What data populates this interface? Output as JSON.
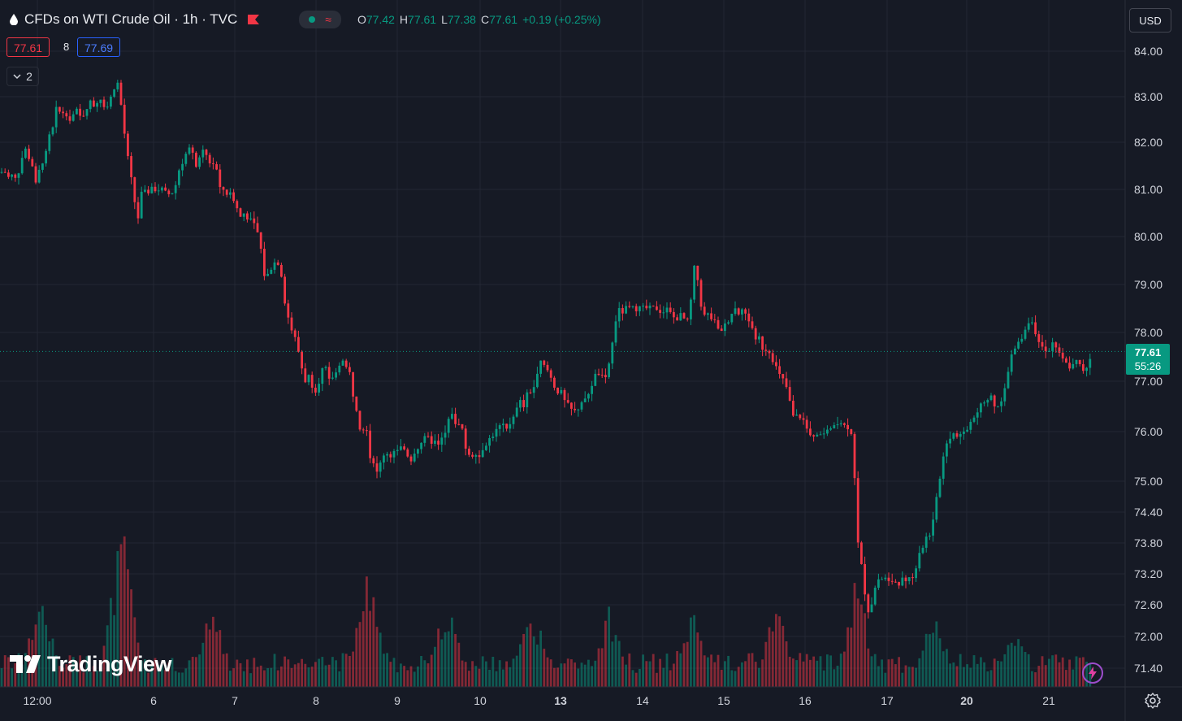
{
  "header": {
    "symbol_title": "CFDs on WTI Crude Oil · 1h · TVC",
    "ohlc": {
      "o_label": "O",
      "o_value": "77.42",
      "h_label": "H",
      "h_value": "77.61",
      "l_label": "L",
      "l_value": "77.38",
      "c_label": "C",
      "c_value": "77.61",
      "change": "+0.19 (+0.25%)"
    },
    "approx_symbol": "≈"
  },
  "trade": {
    "sell_price": "77.61",
    "spread": "8",
    "buy_price": "77.69"
  },
  "indicators_toggle": {
    "count": "2"
  },
  "currency": "USD",
  "last_price": {
    "price": "77.61",
    "countdown": "55:26"
  },
  "watermark": "TradingView",
  "colors": {
    "up": "#089981",
    "down": "#f23645",
    "background": "#161a25",
    "grid": "#232733"
  },
  "icons": [
    "drop-icon",
    "flag-icon",
    "chevron-down-icon",
    "settings-icon",
    "lightning-icon",
    "tradingview-logo-icon"
  ],
  "chart_data": {
    "type": "candlestick",
    "title": "CFDs on WTI Crude Oil · 1h · TVC",
    "interval": "1h",
    "y_axis_side": "right",
    "y_ticks": [
      "84.00",
      "83.00",
      "82.00",
      "81.00",
      "80.00",
      "79.00",
      "78.00",
      "77.00",
      "76.00",
      "75.00",
      "74.40",
      "73.80",
      "73.20",
      "72.60",
      "72.00",
      "71.40"
    ],
    "y_scale": "logarithmic",
    "x_ticks": [
      "12:00",
      "6",
      "7",
      "8",
      "9",
      "10",
      "13",
      "14",
      "15",
      "16",
      "17",
      "20",
      "21"
    ],
    "bold_x_ticks": [
      "13",
      "20"
    ],
    "last_value": 77.61,
    "grid": true,
    "price_path": [
      [
        0,
        81.35
      ],
      [
        5,
        81.4
      ],
      [
        10,
        81.25
      ],
      [
        15,
        81.3
      ],
      [
        20,
        81.2
      ],
      [
        25,
        81.5
      ],
      [
        30,
        81.9
      ],
      [
        35,
        81.7
      ],
      [
        40,
        81.5
      ],
      [
        45,
        81.0
      ],
      [
        50,
        81.6
      ],
      [
        55,
        81.6
      ],
      [
        60,
        82.1
      ],
      [
        65,
        82.3
      ],
      [
        70,
        82.8
      ],
      [
        75,
        82.6
      ],
      [
        80,
        82.7
      ],
      [
        85,
        82.5
      ],
      [
        90,
        82.6
      ],
      [
        95,
        82.7
      ],
      [
        100,
        82.5
      ],
      [
        105,
        82.7
      ],
      [
        110,
        82.9
      ],
      [
        115,
        82.8
      ],
      [
        120,
        82.9
      ],
      [
        125,
        83.0
      ],
      [
        130,
        82.7
      ],
      [
        135,
        82.9
      ],
      [
        140,
        83.2
      ],
      [
        145,
        83.3
      ],
      [
        150,
        82.7
      ],
      [
        155,
        81.9
      ],
      [
        160,
        81.4
      ],
      [
        165,
        80.8
      ],
      [
        170,
        80.4
      ],
      [
        175,
        81.0
      ],
      [
        180,
        80.9
      ],
      [
        185,
        81.0
      ],
      [
        190,
        81.0
      ],
      [
        195,
        81.0
      ],
      [
        200,
        81.0
      ],
      [
        205,
        80.9
      ],
      [
        210,
        80.9
      ],
      [
        215,
        81.0
      ],
      [
        220,
        81.4
      ],
      [
        225,
        81.6
      ],
      [
        230,
        81.8
      ],
      [
        235,
        81.9
      ],
      [
        240,
        81.5
      ],
      [
        245,
        81.6
      ],
      [
        250,
        81.8
      ],
      [
        255,
        81.7
      ],
      [
        260,
        81.5
      ],
      [
        265,
        81.6
      ],
      [
        270,
        81.0
      ],
      [
        275,
        81.0
      ],
      [
        280,
        80.9
      ],
      [
        285,
        80.9
      ],
      [
        290,
        80.7
      ],
      [
        295,
        80.4
      ],
      [
        300,
        80.5
      ],
      [
        305,
        80.4
      ],
      [
        310,
        80.3
      ],
      [
        315,
        80.2
      ],
      [
        320,
        79.9
      ],
      [
        325,
        79.2
      ],
      [
        330,
        79.2
      ],
      [
        335,
        79.4
      ],
      [
        340,
        79.5
      ],
      [
        345,
        79.4
      ],
      [
        350,
        78.7
      ],
      [
        355,
        78.3
      ],
      [
        360,
        78.0
      ],
      [
        365,
        77.8
      ],
      [
        370,
        77.4
      ],
      [
        375,
        77.0
      ],
      [
        380,
        77.1
      ],
      [
        385,
        76.9
      ],
      [
        390,
        76.8
      ],
      [
        395,
        77.2
      ],
      [
        400,
        77.3
      ],
      [
        405,
        77.0
      ],
      [
        410,
        77.1
      ],
      [
        415,
        77.2
      ],
      [
        420,
        77.5
      ],
      [
        425,
        77.3
      ],
      [
        430,
        77.2
      ],
      [
        435,
        76.7
      ],
      [
        440,
        76.4
      ],
      [
        445,
        75.9
      ],
      [
        450,
        76.3
      ],
      [
        455,
        75.5
      ],
      [
        460,
        75.4
      ],
      [
        465,
        75.1
      ],
      [
        470,
        75.5
      ],
      [
        475,
        75.6
      ],
      [
        480,
        75.5
      ],
      [
        485,
        75.6
      ],
      [
        490,
        75.6
      ],
      [
        495,
        75.7
      ],
      [
        500,
        75.6
      ],
      [
        505,
        75.4
      ],
      [
        510,
        75.6
      ],
      [
        515,
        75.7
      ],
      [
        520,
        75.8
      ],
      [
        525,
        75.9
      ],
      [
        530,
        75.8
      ],
      [
        535,
        75.8
      ],
      [
        540,
        75.7
      ],
      [
        545,
        75.9
      ],
      [
        550,
        76.0
      ],
      [
        555,
        76.5
      ],
      [
        560,
        76.1
      ],
      [
        565,
        76.2
      ],
      [
        570,
        76.0
      ],
      [
        575,
        75.5
      ],
      [
        580,
        75.5
      ],
      [
        585,
        75.6
      ],
      [
        590,
        75.5
      ],
      [
        595,
        75.7
      ],
      [
        600,
        75.8
      ],
      [
        605,
        75.9
      ],
      [
        610,
        76.0
      ],
      [
        615,
        76.1
      ],
      [
        620,
        76.1
      ],
      [
        625,
        76.0
      ],
      [
        630,
        76.3
      ],
      [
        635,
        76.4
      ],
      [
        640,
        76.6
      ],
      [
        645,
        76.5
      ],
      [
        650,
        76.8
      ],
      [
        655,
        76.8
      ],
      [
        660,
        77.0
      ],
      [
        665,
        77.4
      ],
      [
        670,
        77.3
      ],
      [
        675,
        77.2
      ],
      [
        680,
        77.0
      ],
      [
        685,
        76.8
      ],
      [
        690,
        76.8
      ],
      [
        695,
        76.6
      ],
      [
        700,
        76.5
      ],
      [
        705,
        76.4
      ],
      [
        710,
        76.4
      ],
      [
        715,
        76.6
      ],
      [
        720,
        76.6
      ],
      [
        725,
        76.8
      ],
      [
        730,
        77.0
      ],
      [
        735,
        77.2
      ],
      [
        740,
        77.1
      ],
      [
        745,
        77.0
      ],
      [
        750,
        77.4
      ],
      [
        755,
        77.9
      ],
      [
        760,
        78.5
      ],
      [
        765,
        78.4
      ],
      [
        770,
        78.5
      ],
      [
        775,
        78.5
      ],
      [
        780,
        78.5
      ],
      [
        785,
        78.5
      ],
      [
        790,
        78.5
      ],
      [
        795,
        78.5
      ],
      [
        800,
        78.5
      ],
      [
        805,
        78.5
      ],
      [
        810,
        78.5
      ],
      [
        815,
        78.4
      ],
      [
        820,
        78.5
      ],
      [
        825,
        78.4
      ],
      [
        830,
        78.3
      ],
      [
        835,
        78.3
      ],
      [
        840,
        78.4
      ],
      [
        845,
        78.1
      ],
      [
        850,
        78.6
      ],
      [
        855,
        79.4
      ],
      [
        860,
        79.0
      ],
      [
        865,
        78.3
      ],
      [
        870,
        78.4
      ],
      [
        875,
        78.3
      ],
      [
        880,
        78.2
      ],
      [
        885,
        78.0
      ],
      [
        890,
        78.1
      ],
      [
        895,
        78.2
      ],
      [
        900,
        78.4
      ],
      [
        905,
        78.5
      ],
      [
        910,
        78.4
      ],
      [
        915,
        78.6
      ],
      [
        920,
        78.2
      ],
      [
        925,
        78.2
      ],
      [
        930,
        77.8
      ],
      [
        935,
        77.9
      ],
      [
        940,
        77.6
      ],
      [
        945,
        77.7
      ],
      [
        950,
        77.5
      ],
      [
        955,
        77.3
      ],
      [
        960,
        77.1
      ],
      [
        965,
        77.0
      ],
      [
        970,
        76.8
      ],
      [
        975,
        76.3
      ],
      [
        980,
        76.3
      ],
      [
        985,
        76.3
      ],
      [
        990,
        76.2
      ],
      [
        995,
        75.9
      ],
      [
        1000,
        75.9
      ],
      [
        1005,
        76.0
      ],
      [
        1010,
        75.9
      ],
      [
        1015,
        76.0
      ],
      [
        1020,
        76.1
      ],
      [
        1025,
        76.1
      ],
      [
        1030,
        76.2
      ],
      [
        1035,
        76.2
      ],
      [
        1040,
        76.1
      ],
      [
        1045,
        76.1
      ],
      [
        1050,
        75.9
      ],
      [
        1055,
        73.9
      ],
      [
        1060,
        73.4
      ],
      [
        1065,
        72.8
      ],
      [
        1070,
        72.4
      ],
      [
        1075,
        72.8
      ],
      [
        1080,
        73.1
      ],
      [
        1085,
        73.1
      ],
      [
        1090,
        73.1
      ],
      [
        1095,
        73.0
      ],
      [
        1100,
        73.1
      ],
      [
        1105,
        73.0
      ],
      [
        1110,
        73.1
      ],
      [
        1115,
        73.0
      ],
      [
        1120,
        73.1
      ],
      [
        1125,
        73.1
      ],
      [
        1130,
        73.6
      ],
      [
        1135,
        73.7
      ],
      [
        1140,
        73.9
      ],
      [
        1145,
        74.0
      ],
      [
        1150,
        74.3
      ],
      [
        1155,
        74.9
      ],
      [
        1160,
        75.4
      ],
      [
        1165,
        75.8
      ],
      [
        1170,
        75.9
      ],
      [
        1175,
        76.0
      ],
      [
        1180,
        75.9
      ],
      [
        1185,
        76.0
      ],
      [
        1190,
        76.0
      ],
      [
        1195,
        76.2
      ],
      [
        1200,
        76.3
      ],
      [
        1205,
        76.5
      ],
      [
        1210,
        76.5
      ],
      [
        1215,
        76.6
      ],
      [
        1220,
        76.7
      ],
      [
        1225,
        76.5
      ],
      [
        1230,
        76.5
      ],
      [
        1235,
        76.8
      ],
      [
        1240,
        77.1
      ],
      [
        1245,
        77.5
      ],
      [
        1250,
        77.7
      ],
      [
        1255,
        77.8
      ],
      [
        1260,
        78.0
      ],
      [
        1265,
        78.2
      ],
      [
        1270,
        78.3
      ],
      [
        1275,
        77.9
      ],
      [
        1280,
        77.7
      ],
      [
        1285,
        77.7
      ],
      [
        1290,
        77.6
      ],
      [
        1295,
        77.8
      ],
      [
        1300,
        77.7
      ],
      [
        1305,
        77.5
      ],
      [
        1310,
        77.4
      ],
      [
        1315,
        77.3
      ],
      [
        1320,
        77.3
      ],
      [
        1325,
        77.4
      ],
      [
        1330,
        77.3
      ],
      [
        1335,
        77.2
      ],
      [
        1340,
        77.4
      ],
      [
        1345,
        77.61
      ]
    ],
    "volume_spikes": [
      [
        50,
        0.6
      ],
      [
        150,
        1.0
      ],
      [
        260,
        0.55
      ],
      [
        455,
        0.75
      ],
      [
        550,
        0.55
      ],
      [
        655,
        0.52
      ],
      [
        750,
        0.5
      ],
      [
        850,
        0.5
      ],
      [
        955,
        0.55
      ],
      [
        1055,
        0.68
      ],
      [
        1150,
        0.5
      ],
      [
        1250,
        0.4
      ]
    ]
  }
}
